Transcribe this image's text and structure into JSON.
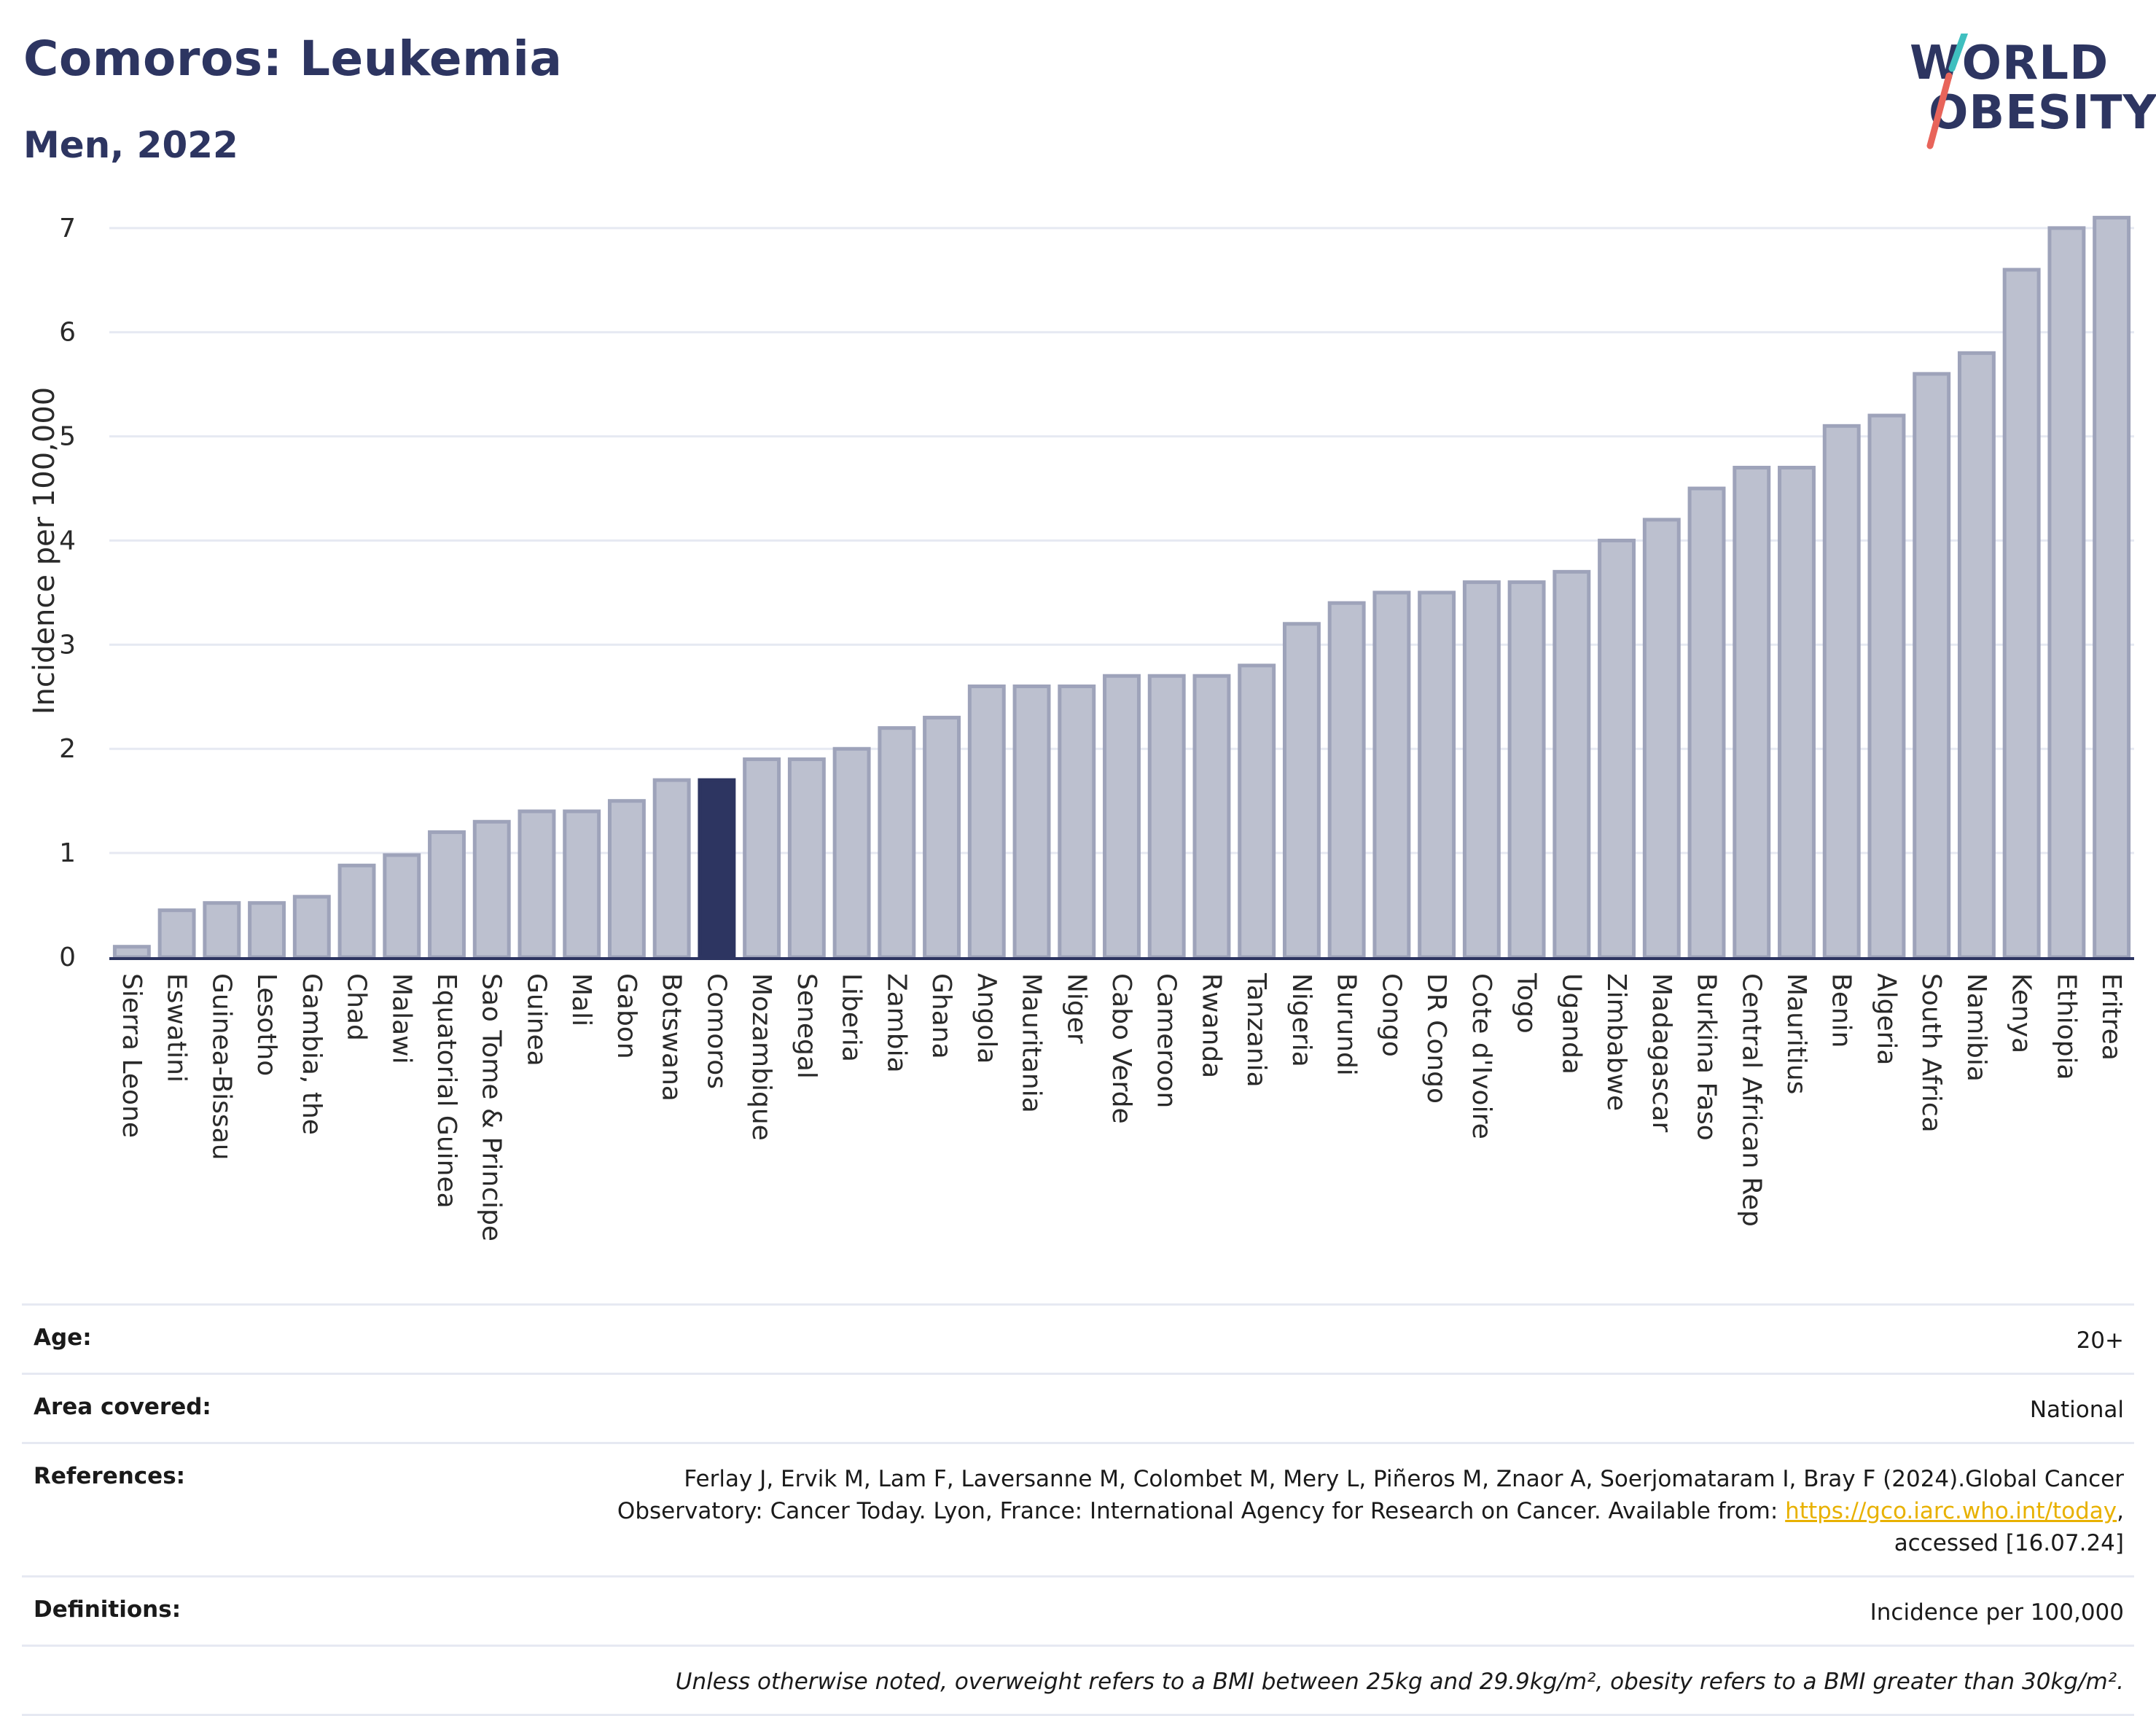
{
  "header": {
    "title": "Comoros: Leukemia",
    "subtitle": "Men, 2022"
  },
  "logo": {
    "line1": "WORLD",
    "line2": "OBESITY",
    "colors": {
      "text": "#2d3561",
      "slash_top": "#3fbfbf",
      "slash_bottom": "#e8645a"
    }
  },
  "colors": {
    "bar_default": "#bcc0cf",
    "bar_border": "#9ea3ba",
    "bar_highlight": "#2d3561",
    "grid": "#e6e9f2",
    "axis": "#2d3561",
    "link": "#e8b100"
  },
  "chart_data": {
    "type": "bar",
    "title": "Comoros: Leukemia",
    "subtitle": "Men, 2022",
    "xlabel": "",
    "ylabel": "Incidence per 100,000",
    "ylim": [
      0,
      7.3
    ],
    "yticks": [
      0,
      1,
      2,
      3,
      4,
      5,
      6,
      7
    ],
    "grid": true,
    "highlight": "Comoros",
    "categories": [
      "Sierra Leone",
      "Eswatini",
      "Guinea-Bissau",
      "Lesotho",
      "Gambia, the",
      "Chad",
      "Malawi",
      "Equatorial Guinea",
      "Sao Tome & Principe",
      "Guinea",
      "Mali",
      "Gabon",
      "Botswana",
      "Comoros",
      "Mozambique",
      "Senegal",
      "Liberia",
      "Zambia",
      "Ghana",
      "Angola",
      "Mauritania",
      "Niger",
      "Cabo Verde",
      "Cameroon",
      "Rwanda",
      "Tanzania",
      "Nigeria",
      "Burundi",
      "Congo",
      "DR Congo",
      "Cote d'Ivoire",
      "Togo",
      "Uganda",
      "Zimbabwe",
      "Madagascar",
      "Burkina Faso",
      "Central African Rep",
      "Mauritius",
      "Benin",
      "Algeria",
      "South Africa",
      "Namibia",
      "Kenya",
      "Ethiopia",
      "Eritrea"
    ],
    "values": [
      0.1,
      0.45,
      0.52,
      0.52,
      0.58,
      0.88,
      0.98,
      1.2,
      1.3,
      1.4,
      1.4,
      1.5,
      1.7,
      1.7,
      1.9,
      1.9,
      2.0,
      2.2,
      2.3,
      2.6,
      2.6,
      2.6,
      2.7,
      2.7,
      2.7,
      2.8,
      3.2,
      3.4,
      3.5,
      3.5,
      3.6,
      3.6,
      3.7,
      4.0,
      4.2,
      4.5,
      4.7,
      4.7,
      5.1,
      5.2,
      5.6,
      5.8,
      6.6,
      7.0,
      7.1
    ]
  },
  "meta": {
    "age_label": "Age:",
    "age_value": "20+",
    "area_label": "Area covered:",
    "area_value": "National",
    "references_label": "References:",
    "references_line1": "Ferlay J, Ervik M, Lam F, Laversanne M, Colombet M, Mery L, Piñeros M, Znaor A, Soerjomataram I, Bray F (2024).Global Cancer",
    "references_line2_pre": "Observatory: Cancer Today. Lyon, France: International Agency for Research on Cancer. Available from: ",
    "references_link": "https://gco.iarc.who.int/today",
    "references_line2_post": ",",
    "references_line3": "accessed [16.07.24]",
    "definitions_label": "Definitions:",
    "definitions_value": "Incidence per 100,000",
    "note": "Unless otherwise noted, overweight refers to a BMI between 25kg and 29.9kg/m², obesity refers to a BMI greater than 30kg/m²."
  }
}
